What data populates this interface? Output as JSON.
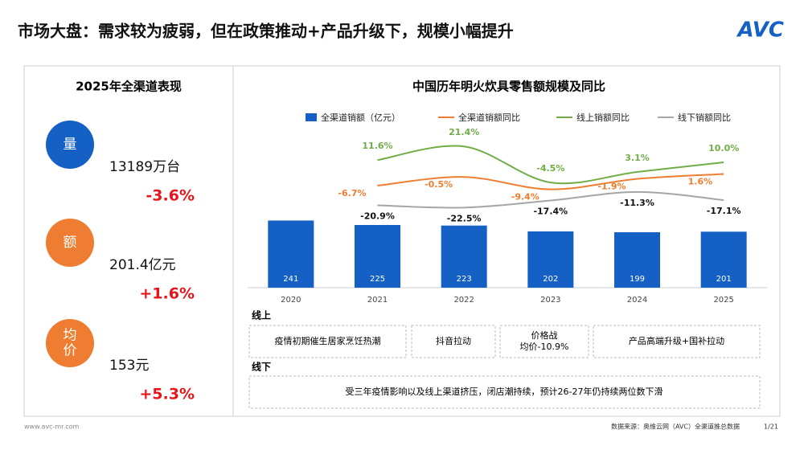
{
  "header": {
    "title": "市场大盘：需求较为疲弱，但在政策推动+产品升级下，规模小幅提升",
    "logo": "AVC"
  },
  "summary": {
    "title": "2025年全渠道表现",
    "items": [
      {
        "icon": [
          "量"
        ],
        "value": "13189万台",
        "change": "-3.6%"
      },
      {
        "icon": [
          "额"
        ],
        "value": "201.4亿元",
        "change": "+1.6%"
      },
      {
        "icon": [
          "均",
          "价"
        ],
        "value": "153元",
        "change": "+5.3%"
      }
    ]
  },
  "chart_data": {
    "type": "combo",
    "title": "中国历年明火炊具零售额规模及同比",
    "categories": [
      "2020",
      "2021",
      "2022",
      "2023",
      "2024",
      "2025"
    ],
    "ylim": [
      0,
      600
    ],
    "y2lim": [
      -80,
      40
    ],
    "legend": "top",
    "series": [
      {
        "name": "全渠道销额（亿元）",
        "type": "bar",
        "color": "#1460c4",
        "values": [
          241,
          225,
          223,
          202,
          199,
          201
        ]
      },
      {
        "name": "全渠道销额同比",
        "type": "line",
        "axis": "y2",
        "color": "#ef7d31",
        "values": [
          null,
          -6.7,
          -0.5,
          -9.4,
          -1.9,
          1.6
        ],
        "value_labels": [
          null,
          "-6.7%",
          "-0.5%",
          "-9.4%",
          "-1.9%",
          "1.6%"
        ]
      },
      {
        "name": "线上销额同比",
        "type": "line",
        "axis": "y2",
        "color": "#70ad47",
        "values": [
          null,
          11.6,
          21.4,
          -4.5,
          3.1,
          10.0
        ],
        "value_labels": [
          null,
          "11.6%",
          "21.4%",
          "-4.5%",
          "3.1%",
          "10.0%"
        ]
      },
      {
        "name": "线下销额同比",
        "type": "line",
        "axis": "y2",
        "color": "#a5a5a5",
        "values": [
          null,
          -20.9,
          -22.5,
          -17.4,
          -11.3,
          -17.1
        ],
        "value_labels": [
          null,
          "-20.9%",
          "-22.5%",
          "-17.4%",
          "-11.3%",
          "-17.1%"
        ]
      }
    ]
  },
  "drivers": {
    "online": {
      "label": "线上",
      "notes": [
        [
          "疫情初期催生居家烹饪热潮"
        ],
        [
          "抖音拉动"
        ],
        [
          "价格战",
          "均价-10.9%"
        ],
        [
          "产品高端升级+国补拉动"
        ]
      ]
    },
    "offline": {
      "label": "线下",
      "note": "受三年疫情影响以及线上渠道挤压，闭店潮持续，预计26-27年仍持续两位数下滑"
    }
  },
  "footer": {
    "website": "www.avc-mr.com",
    "source": "数据来源：奥维云网（AVC）全渠道推总数据",
    "page": "1/21"
  }
}
